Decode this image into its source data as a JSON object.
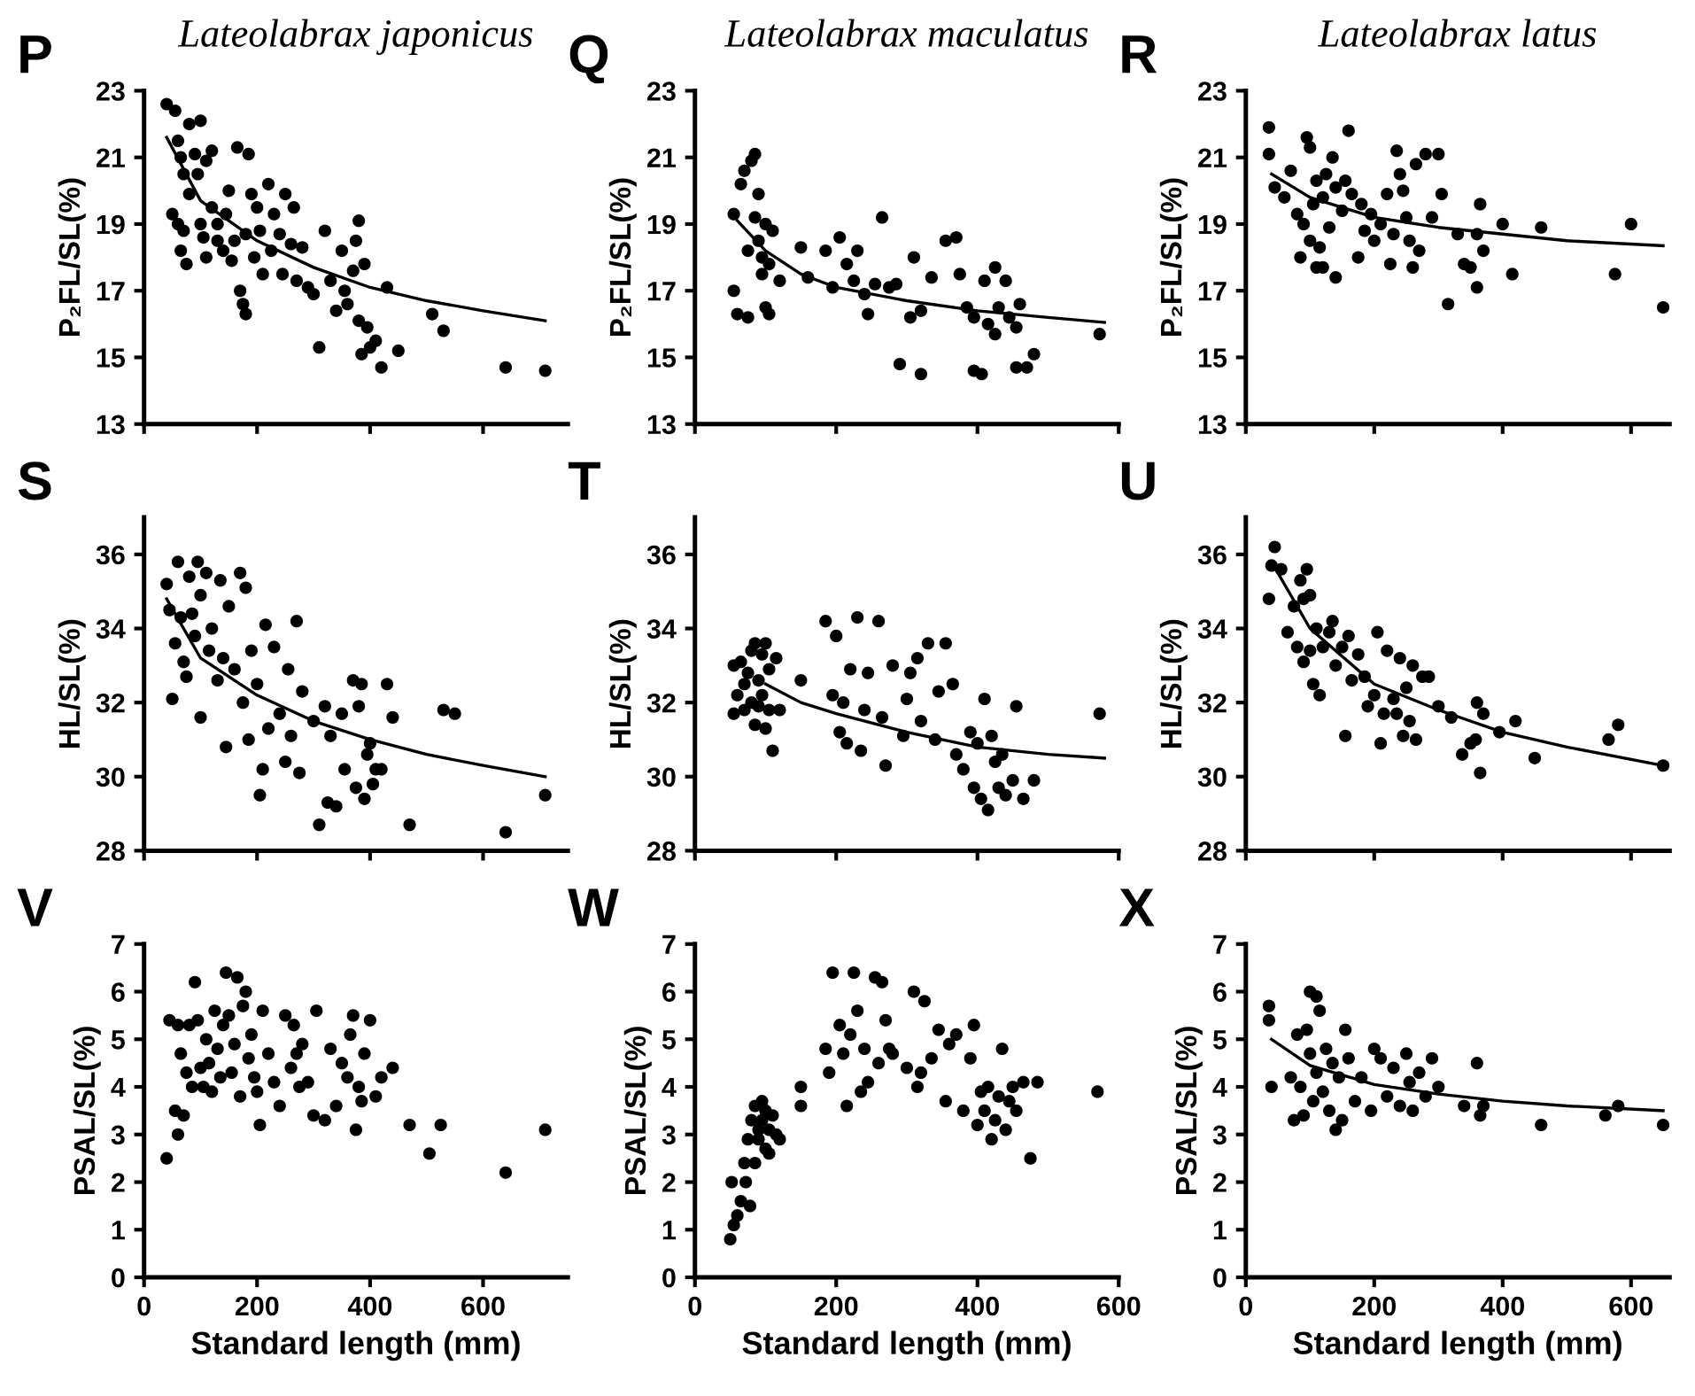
{
  "chart_data": [
    {
      "type": "scatter",
      "title": "Lateolabrax japonicus",
      "ylabel": "P₂FL/SL(%)",
      "annotations": [
        "P"
      ],
      "xlim": [
        0,
        750
      ],
      "xticks": [
        0,
        200,
        400,
        600
      ],
      "ylim": [
        13,
        23
      ],
      "yticks": [
        13,
        15,
        17,
        19,
        21,
        23
      ],
      "tick_labels": "y",
      "grid": false,
      "legend": false,
      "line_style": "solid",
      "series": [
        {
          "marker": "circle",
          "color": "#000000",
          "x": [
            40,
            55,
            50,
            60,
            65,
            70,
            60,
            70,
            65,
            75,
            80,
            80,
            90,
            95,
            100,
            100,
            105,
            110,
            110,
            120,
            120,
            130,
            130,
            140,
            145,
            150,
            155,
            160,
            165,
            170,
            175,
            180,
            180,
            185,
            190,
            195,
            200,
            205,
            210,
            220,
            225,
            230,
            240,
            245,
            250,
            260,
            265,
            270,
            280,
            290,
            300,
            310,
            320,
            330,
            340,
            350,
            355,
            360,
            370,
            375,
            380,
            380,
            385,
            390,
            395,
            400,
            410,
            420,
            430,
            450,
            510,
            530,
            640,
            710
          ],
          "values": [
            22.6,
            22.4,
            19.3,
            21.5,
            21,
            20.5,
            19,
            18.8,
            18.2,
            17.8,
            19.9,
            22,
            21.1,
            20.5,
            22.1,
            19,
            18.6,
            20.9,
            18,
            21.2,
            19.5,
            19,
            18.5,
            18.2,
            19.3,
            20,
            17.9,
            18.5,
            21.3,
            17,
            16.6,
            16.3,
            18.7,
            21.1,
            19.9,
            18,
            19.5,
            18.8,
            17.5,
            20.2,
            18.2,
            19.3,
            18.7,
            17.5,
            19.9,
            18.4,
            19.5,
            17.3,
            18.3,
            17.1,
            16.9,
            15.3,
            18.8,
            17.3,
            16.4,
            18.2,
            17,
            16.6,
            17.6,
            18.5,
            19.1,
            16.1,
            15.1,
            17.8,
            15.9,
            15.3,
            15.5,
            14.7,
            17.1,
            15.2,
            16.3,
            15.8,
            14.7,
            14.6
          ]
        },
        {
          "type": "line",
          "color": "#000000",
          "x": [
            40,
            100,
            200,
            300,
            400,
            500,
            600,
            710
          ],
          "values": [
            21.6,
            19.7,
            18.5,
            17.7,
            17.1,
            16.7,
            16.4,
            16.1
          ]
        }
      ]
    },
    {
      "type": "scatter",
      "title": "Lateolabrax maculatus",
      "ylabel": "P₂FL/SL(%)",
      "annotations": [
        "Q"
      ],
      "xlim": [
        0,
        600
      ],
      "xticks": [
        0,
        200,
        400,
        600
      ],
      "ylim": [
        13,
        23
      ],
      "yticks": [
        13,
        15,
        17,
        19,
        21,
        23
      ],
      "tick_labels": "y",
      "grid": false,
      "legend": false,
      "line_style": "solid",
      "series": [
        {
          "marker": "circle",
          "color": "#000000",
          "x": [
            55,
            55,
            60,
            65,
            70,
            75,
            75,
            80,
            85,
            85,
            90,
            90,
            95,
            95,
            100,
            100,
            105,
            105,
            110,
            120,
            150,
            160,
            185,
            195,
            205,
            215,
            225,
            230,
            240,
            245,
            255,
            265,
            275,
            285,
            290,
            305,
            310,
            320,
            320,
            335,
            355,
            370,
            375,
            385,
            395,
            395,
            406,
            410,
            415,
            425,
            425,
            430,
            440,
            445,
            455,
            460,
            455,
            480,
            470,
            573
          ],
          "values": [
            19.3,
            17,
            16.3,
            20.2,
            20.6,
            18.2,
            16.2,
            20.9,
            21.1,
            19.2,
            19.9,
            18.5,
            18,
            17.5,
            19,
            16.5,
            17.8,
            16.3,
            18.8,
            17.3,
            18.3,
            17.4,
            18.2,
            17.1,
            18.6,
            17.8,
            17.3,
            18.2,
            16.9,
            16.3,
            17.2,
            19.2,
            17.1,
            17.2,
            14.8,
            16.2,
            18,
            16.4,
            14.5,
            17.4,
            18.5,
            18.6,
            17.5,
            16.5,
            16.2,
            14.6,
            14.5,
            17.3,
            16,
            15.7,
            17.7,
            16.5,
            17.3,
            16.2,
            14.7,
            16.6,
            15.9,
            15.1,
            14.7,
            15.7
          ]
        },
        {
          "type": "line",
          "color": "#000000",
          "x": [
            60,
            100,
            150,
            200,
            300,
            400,
            500,
            580
          ],
          "values": [
            19.1,
            18.2,
            17.5,
            17.1,
            16.7,
            16.4,
            16.2,
            16.05
          ]
        }
      ]
    },
    {
      "type": "scatter",
      "title": "Lateolabrax latus",
      "ylabel": "P₂FL/SL(%)",
      "annotations": [
        "R"
      ],
      "xlim": [
        0,
        660
      ],
      "xticks": [
        0,
        200,
        400,
        600
      ],
      "ylim": [
        13,
        23
      ],
      "yticks": [
        13,
        15,
        17,
        19,
        21,
        23
      ],
      "tick_labels": "y",
      "grid": false,
      "legend": false,
      "line_style": "solid",
      "series": [
        {
          "marker": "circle",
          "color": "#000000",
          "x": [
            36,
            36,
            45,
            60,
            70,
            80,
            85,
            90,
            95,
            100,
            100,
            105,
            110,
            110,
            115,
            120,
            120,
            125,
            130,
            135,
            140,
            140,
            150,
            155,
            160,
            165,
            175,
            180,
            185,
            195,
            200,
            210,
            220,
            225,
            230,
            235,
            240,
            245,
            250,
            255,
            260,
            265,
            270,
            280,
            290,
            300,
            305,
            330,
            340,
            350,
            360,
            360,
            365,
            370,
            400,
            460,
            575,
            600,
            650,
            415,
            315
          ],
          "values": [
            21.9,
            21.1,
            20.1,
            19.8,
            20.6,
            19.3,
            18,
            19,
            21.6,
            21.3,
            18.5,
            19.6,
            17.7,
            20.3,
            18.3,
            17.7,
            19.8,
            20.5,
            18.9,
            21,
            20.1,
            17.4,
            19.4,
            20.3,
            21.8,
            19.9,
            18,
            19.6,
            18.8,
            19.3,
            18.5,
            19,
            19.9,
            17.8,
            18.7,
            21.2,
            20.5,
            20,
            19.2,
            18.5,
            17.7,
            20.8,
            18.2,
            21.1,
            19.2,
            21.1,
            19.9,
            18.7,
            17.8,
            17.7,
            18.7,
            17.1,
            19.6,
            18.2,
            19,
            18.9,
            17.5,
            19,
            16.5,
            17.5,
            16.6
          ]
        },
        {
          "type": "line",
          "color": "#000000",
          "x": [
            40,
            100,
            200,
            300,
            400,
            500,
            650
          ],
          "values": [
            20.5,
            19.8,
            19.2,
            18.9,
            18.7,
            18.5,
            18.35
          ]
        }
      ]
    },
    {
      "type": "scatter",
      "ylabel": "HL/SL(%)",
      "annotations": [
        "S"
      ],
      "xlim": [
        0,
        750
      ],
      "xticks": [
        0,
        200,
        400,
        600
      ],
      "ylim": [
        28,
        37
      ],
      "yticks": [
        28,
        30,
        32,
        34,
        36
      ],
      "tick_labels": "y",
      "grid": false,
      "legend": false,
      "line_style": "solid",
      "series": [
        {
          "marker": "circle",
          "color": "#000000",
          "x": [
            40,
            45,
            50,
            55,
            60,
            65,
            70,
            75,
            80,
            85,
            90,
            95,
            100,
            100,
            110,
            115,
            120,
            130,
            135,
            140,
            145,
            150,
            160,
            170,
            175,
            180,
            185,
            190,
            200,
            205,
            210,
            215,
            220,
            230,
            240,
            250,
            255,
            260,
            270,
            275,
            280,
            300,
            310,
            320,
            325,
            330,
            340,
            350,
            355,
            370,
            375,
            380,
            385,
            390,
            395,
            400,
            405,
            410,
            420,
            430,
            440,
            470,
            530,
            550,
            640,
            710
          ],
          "values": [
            35.2,
            34.5,
            32.1,
            33.6,
            35.8,
            34.3,
            33.1,
            32.7,
            35.4,
            34.4,
            33.8,
            35.8,
            34.9,
            31.6,
            35.5,
            33.4,
            34,
            32.6,
            35.3,
            33.2,
            30.8,
            34.6,
            32.9,
            35.5,
            32,
            35.1,
            31,
            33.4,
            32.5,
            29.5,
            30.2,
            34.1,
            31.3,
            33.5,
            31.7,
            30.4,
            32.9,
            31.1,
            34.2,
            30.1,
            32.3,
            31.5,
            28.7,
            31.9,
            29.3,
            31.1,
            29.2,
            31.7,
            30.2,
            32.6,
            29.7,
            31.9,
            32.5,
            29.4,
            30.6,
            30.9,
            29.8,
            30.2,
            30.2,
            32.5,
            31.6,
            28.7,
            31.8,
            31.7,
            28.5,
            29.5
          ]
        },
        {
          "type": "line",
          "color": "#000000",
          "x": [
            40,
            100,
            200,
            300,
            400,
            500,
            600,
            710
          ],
          "values": [
            34.8,
            33.2,
            32.2,
            31.5,
            31,
            30.6,
            30.3,
            30
          ]
        }
      ]
    },
    {
      "type": "scatter",
      "ylabel": "HL/SL(%)",
      "annotations": [
        "T"
      ],
      "xlim": [
        0,
        600
      ],
      "xticks": [
        0,
        200,
        400,
        600
      ],
      "ylim": [
        28,
        37
      ],
      "yticks": [
        28,
        30,
        32,
        34,
        36
      ],
      "tick_labels": "y",
      "grid": false,
      "legend": false,
      "line_style": "solid",
      "series": [
        {
          "marker": "circle",
          "color": "#000000",
          "x": [
            55,
            55,
            60,
            65,
            70,
            70,
            75,
            80,
            80,
            85,
            85,
            90,
            90,
            95,
            95,
            100,
            100,
            105,
            105,
            110,
            115,
            120,
            150,
            185,
            195,
            200,
            205,
            210,
            215,
            220,
            230,
            235,
            240,
            245,
            260,
            265,
            270,
            280,
            295,
            300,
            305,
            315,
            320,
            330,
            340,
            345,
            355,
            365,
            370,
            380,
            390,
            395,
            400,
            405,
            410,
            415,
            420,
            425,
            430,
            435,
            440,
            450,
            455,
            465,
            480,
            573
          ],
          "values": [
            31.7,
            33,
            32.2,
            33.1,
            32.5,
            31.8,
            32.8,
            33.4,
            32,
            31.4,
            33.6,
            32.6,
            31.9,
            33.3,
            32.2,
            33.6,
            31.3,
            32.9,
            31.8,
            30.7,
            33.2,
            31.8,
            32.6,
            34.2,
            32.2,
            33.8,
            31.2,
            32,
            30.9,
            32.9,
            34.3,
            30.7,
            31.8,
            32.8,
            34.2,
            31.6,
            30.3,
            33,
            31.1,
            32.1,
            32.8,
            33.2,
            31.5,
            33.6,
            31,
            32.3,
            33.6,
            32.5,
            30.6,
            30.2,
            31.2,
            29.7,
            30.9,
            29.4,
            32.1,
            29.1,
            31.1,
            30.4,
            29.7,
            30.6,
            29.5,
            29.9,
            31.9,
            29.4,
            29.9,
            31.7
          ]
        },
        {
          "type": "line",
          "color": "#000000",
          "x": [
            100,
            150,
            200,
            300,
            400,
            500,
            580
          ],
          "values": [
            32.5,
            32,
            31.7,
            31.2,
            30.8,
            30.6,
            30.5
          ]
        }
      ]
    },
    {
      "type": "scatter",
      "ylabel": "HL/SL(%)",
      "annotations": [
        "U"
      ],
      "xlim": [
        0,
        660
      ],
      "xticks": [
        0,
        200,
        400,
        600
      ],
      "ylim": [
        28,
        37
      ],
      "yticks": [
        28,
        30,
        32,
        34,
        36
      ],
      "tick_labels": "y",
      "grid": false,
      "legend": false,
      "line_style": "solid",
      "series": [
        {
          "marker": "circle",
          "color": "#000000",
          "x": [
            36,
            40,
            45,
            55,
            65,
            75,
            80,
            85,
            90,
            90,
            95,
            100,
            100,
            105,
            110,
            115,
            120,
            130,
            135,
            140,
            150,
            155,
            160,
            165,
            175,
            185,
            190,
            200,
            205,
            210,
            215,
            220,
            230,
            235,
            240,
            245,
            250,
            255,
            260,
            265,
            275,
            285,
            300,
            320,
            337,
            358,
            360,
            365,
            370,
            395,
            420,
            450,
            565,
            580,
            650,
            350
          ],
          "values": [
            34.8,
            35.7,
            36.2,
            35.6,
            33.9,
            34.6,
            33.5,
            35.3,
            34.8,
            33.1,
            35.6,
            34.9,
            33.4,
            32.5,
            34,
            32.2,
            33.5,
            33.9,
            34.2,
            33,
            33.5,
            31.1,
            33.8,
            32.6,
            33.3,
            32.7,
            31.9,
            32.2,
            33.9,
            30.9,
            31.7,
            33.4,
            32.1,
            31.7,
            33.2,
            31.1,
            32.4,
            31.5,
            33,
            31,
            32.7,
            32.7,
            31.9,
            31.6,
            30.6,
            31,
            32,
            30.1,
            31.7,
            31.2,
            31.5,
            30.5,
            31,
            31.4,
            30.3,
            30.9
          ]
        },
        {
          "type": "line",
          "color": "#000000",
          "x": [
            40,
            100,
            200,
            300,
            400,
            500,
            650
          ],
          "values": [
            35.8,
            34,
            32.5,
            31.8,
            31.2,
            30.8,
            30.3
          ]
        }
      ]
    },
    {
      "type": "scatter",
      "xlabel": "Standard length (mm)",
      "ylabel": "PSAL/SL(%)",
      "annotations": [
        "V"
      ],
      "xlim": [
        0,
        750
      ],
      "xticks": [
        0,
        200,
        400,
        600
      ],
      "ylim": [
        0,
        7
      ],
      "yticks": [
        0,
        1,
        2,
        3,
        4,
        5,
        6,
        7
      ],
      "grid": false,
      "legend": false,
      "series": [
        {
          "marker": "circle",
          "color": "#000000",
          "x": [
            40,
            45,
            55,
            60,
            60,
            65,
            70,
            75,
            80,
            85,
            90,
            95,
            100,
            105,
            110,
            115,
            120,
            125,
            130,
            135,
            140,
            145,
            150,
            155,
            160,
            165,
            170,
            175,
            180,
            185,
            190,
            195,
            200,
            205,
            210,
            220,
            230,
            240,
            250,
            260,
            265,
            270,
            275,
            280,
            290,
            300,
            305,
            320,
            330,
            340,
            350,
            360,
            365,
            370,
            375,
            380,
            385,
            390,
            400,
            410,
            420,
            440,
            470,
            505,
            525,
            640,
            710
          ],
          "values": [
            2.5,
            5.4,
            3.5,
            5.3,
            3,
            4.7,
            3.4,
            4.3,
            5.3,
            4,
            6.2,
            5.4,
            4.4,
            4,
            5,
            4.5,
            3.9,
            5.6,
            4.8,
            4.2,
            5.3,
            6.4,
            5.5,
            4.3,
            4.9,
            6.3,
            3.8,
            5.7,
            6,
            4.6,
            5.1,
            4.2,
            3.9,
            3.2,
            5.6,
            4.7,
            4.1,
            3.6,
            5.5,
            4.4,
            5.3,
            4.7,
            4,
            4.9,
            4.1,
            3.4,
            5.6,
            3.3,
            4.8,
            3.6,
            4.5,
            4.2,
            5.1,
            5.5,
            3.1,
            4,
            3.7,
            4.7,
            5.4,
            3.8,
            4.2,
            4.4,
            3.2,
            2.6,
            3.2,
            2.2,
            3.1
          ]
        }
      ]
    },
    {
      "type": "scatter",
      "xlabel": "Standard length (mm)",
      "ylabel": "PSAL/SL(%)",
      "annotations": [
        "W"
      ],
      "xlim": [
        0,
        600
      ],
      "xticks": [
        0,
        200,
        400,
        600
      ],
      "ylim": [
        0,
        7
      ],
      "yticks": [
        0,
        1,
        2,
        3,
        4,
        5,
        6,
        7
      ],
      "grid": false,
      "legend": false,
      "series": [
        {
          "marker": "circle",
          "color": "#000000",
          "x": [
            50,
            52,
            55,
            60,
            65,
            70,
            72,
            75,
            78,
            80,
            85,
            85,
            90,
            90,
            95,
            95,
            100,
            100,
            105,
            105,
            110,
            115,
            120,
            150,
            150,
            185,
            190,
            195,
            205,
            210,
            215,
            220,
            225,
            230,
            235,
            240,
            245,
            255,
            260,
            265,
            270,
            275,
            280,
            300,
            310,
            315,
            320,
            325,
            335,
            345,
            355,
            360,
            370,
            380,
            390,
            395,
            400,
            405,
            410,
            415,
            420,
            425,
            430,
            435,
            440,
            445,
            450,
            455,
            465,
            475,
            485,
            570
          ],
          "values": [
            0.8,
            2,
            1.1,
            1.3,
            1.6,
            2.4,
            2,
            2.9,
            1.5,
            3.3,
            3.6,
            2.4,
            3.1,
            2.9,
            3.7,
            3.3,
            2.7,
            3.5,
            3.1,
            2.6,
            3.4,
            3,
            2.9,
            4,
            3.6,
            4.8,
            4.3,
            6.4,
            5.3,
            4.7,
            3.6,
            5.1,
            6.4,
            5.6,
            3.9,
            4.8,
            4.1,
            6.3,
            4.5,
            6.2,
            5.4,
            4.8,
            4.7,
            4.4,
            6,
            4,
            4.3,
            5.8,
            4.6,
            5.2,
            3.7,
            4.9,
            5.1,
            3.5,
            4.6,
            5.3,
            3.2,
            3.9,
            3.5,
            4,
            2.9,
            3.3,
            3.8,
            4.8,
            3.1,
            3.7,
            4,
            3.5,
            4.1,
            2.5,
            4.1,
            3.9
          ]
        }
      ]
    },
    {
      "type": "scatter",
      "xlabel": "Standard length (mm)",
      "ylabel": "PSAL/SL(%)",
      "annotations": [
        "X"
      ],
      "xlim": [
        0,
        660
      ],
      "xticks": [
        0,
        200,
        400,
        600
      ],
      "ylim": [
        0,
        7
      ],
      "yticks": [
        0,
        1,
        2,
        3,
        4,
        5,
        6,
        7
      ],
      "grid": false,
      "legend": false,
      "line_style": "solid",
      "series": [
        {
          "marker": "circle",
          "color": "#000000",
          "x": [
            36,
            36,
            40,
            70,
            75,
            80,
            85,
            90,
            95,
            100,
            100,
            105,
            110,
            110,
            115,
            120,
            125,
            130,
            135,
            140,
            145,
            150,
            155,
            160,
            170,
            180,
            195,
            200,
            210,
            220,
            230,
            240,
            250,
            255,
            260,
            270,
            280,
            290,
            300,
            340,
            360,
            365,
            370,
            460,
            560,
            580,
            650
          ],
          "values": [
            5.7,
            5.4,
            4,
            4.2,
            3.3,
            5.1,
            4,
            3.4,
            5.2,
            6,
            4.7,
            3.7,
            5.9,
            4.3,
            5.6,
            3.9,
            4.8,
            3.5,
            4.5,
            3.1,
            4.2,
            3.3,
            5.2,
            4.6,
            3.7,
            4.2,
            3.5,
            4.8,
            4.6,
            3.8,
            4.4,
            3.6,
            4.7,
            4.1,
            3.5,
            4.3,
            3.8,
            4.6,
            4,
            3.6,
            4.5,
            3.4,
            3.6,
            3.2,
            3.4,
            3.6,
            3.2
          ]
        },
        {
          "type": "line",
          "color": "#000000",
          "x": [
            40,
            100,
            200,
            300,
            400,
            500,
            650
          ],
          "values": [
            5.0,
            4.45,
            4.05,
            3.85,
            3.7,
            3.6,
            3.5
          ]
        }
      ]
    }
  ]
}
